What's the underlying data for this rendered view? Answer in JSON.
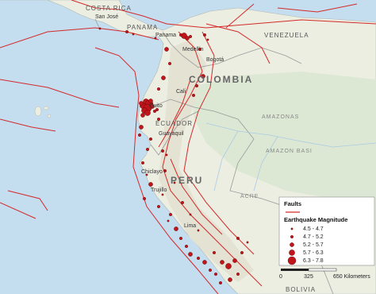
{
  "labels": [
    "COSTA RICA",
    "San José",
    "PANAMA",
    "Panama",
    "VENEZUELA",
    "Medellín",
    "Bogotá",
    "COLOMBIA",
    "AMAZONAS",
    "Quito",
    "ECUADOR",
    "Guayaquil",
    "AMAZON BASI",
    "Chiclayo",
    "Trujillo",
    "PERU",
    "ACRE",
    "Lima",
    "BOLIVIA",
    "Cali"
  ],
  "legend": {
    "faults": "Faults",
    "title": "Earthquake Magnitude",
    "classes": [
      "4.5 - 4.7",
      "4.7 - 5.2",
      "5.2 - 5.7",
      "5.7 - 6.3",
      "6.3 - 7.8"
    ]
  },
  "scale": {
    "labels": [
      "0",
      "325",
      "650 Kilometers"
    ]
  }
}
